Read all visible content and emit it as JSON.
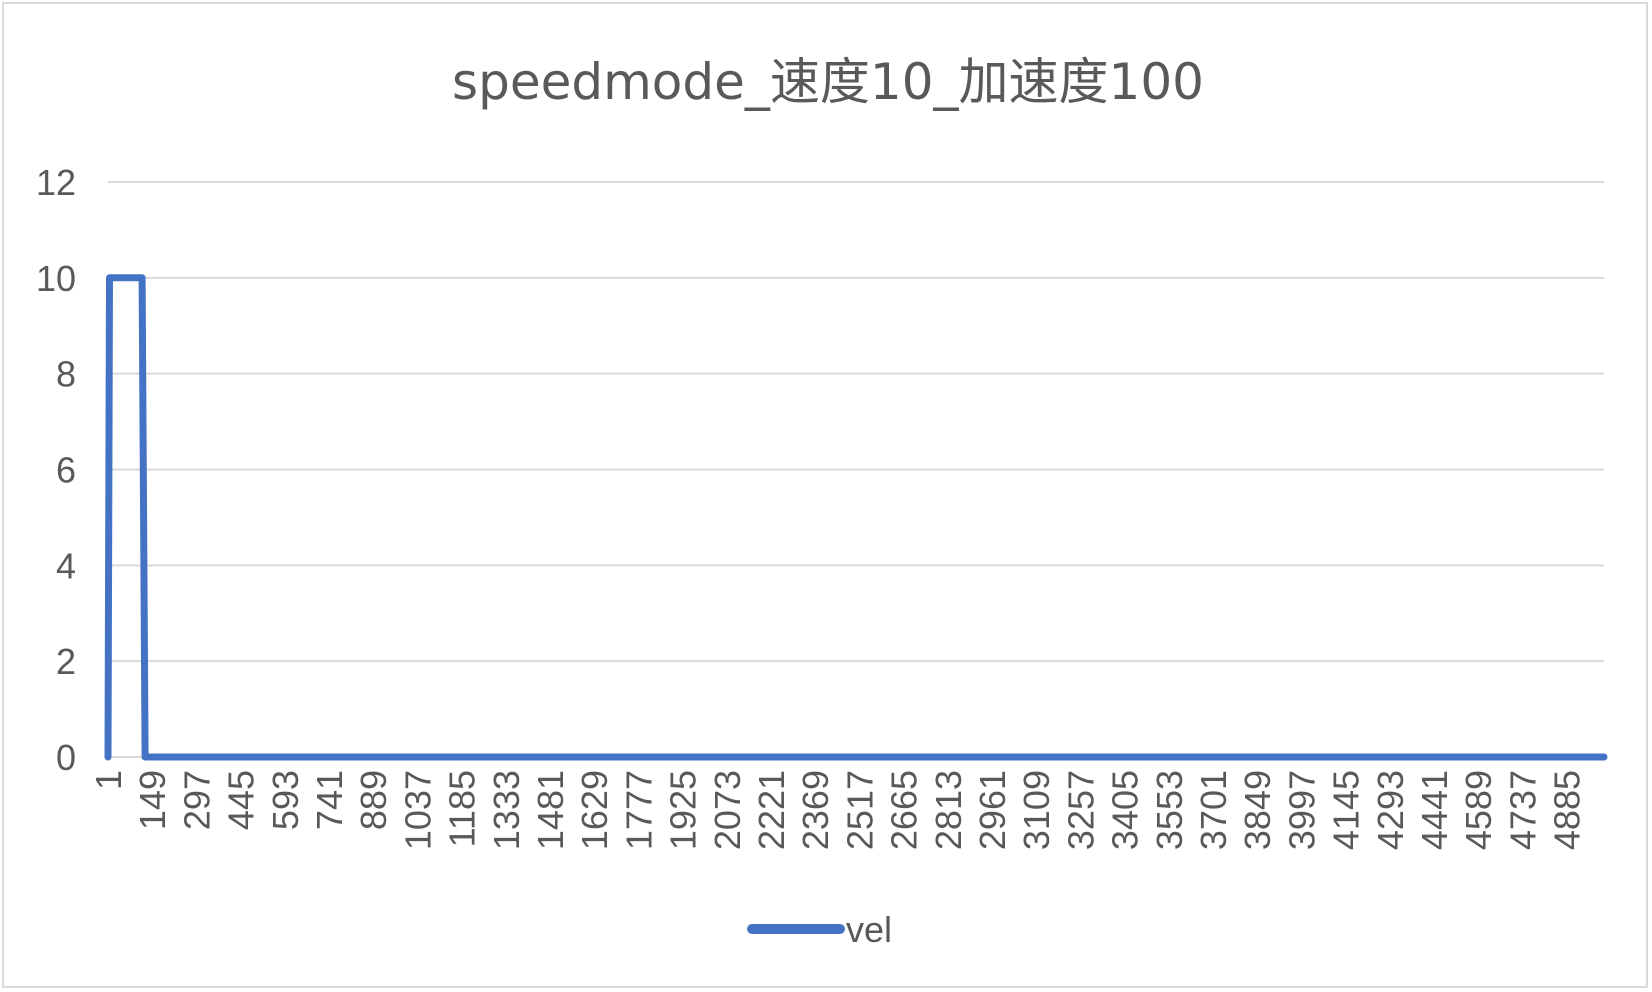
{
  "chart_data": {
    "type": "line",
    "title": "speedmode_速度10_加速度100",
    "xlabel": "",
    "ylabel": "",
    "ylim": [
      0,
      12
    ],
    "yticks": [
      "0",
      "2",
      "4",
      "6",
      "8",
      "10",
      "12"
    ],
    "xlim": [
      1,
      5000
    ],
    "xticks": [
      "1",
      "149",
      "297",
      "445",
      "593",
      "741",
      "889",
      "1037",
      "1185",
      "1333",
      "1481",
      "1629",
      "1777",
      "1925",
      "2073",
      "2221",
      "2369",
      "2517",
      "2665",
      "2813",
      "2961",
      "3109",
      "3257",
      "3405",
      "3553",
      "3701",
      "3849",
      "3997",
      "4145",
      "4293",
      "4441",
      "4589",
      "4737",
      "4885"
    ],
    "grid": true,
    "legend_position": "bottom",
    "series": [
      {
        "name": "vel",
        "color": "#4472c4",
        "x": [
          1,
          6,
          11,
          16,
          110,
          115,
          120,
          125,
          5000
        ],
        "y": [
          0,
          10,
          10,
          10,
          10,
          10,
          5,
          0,
          0
        ]
      }
    ]
  }
}
